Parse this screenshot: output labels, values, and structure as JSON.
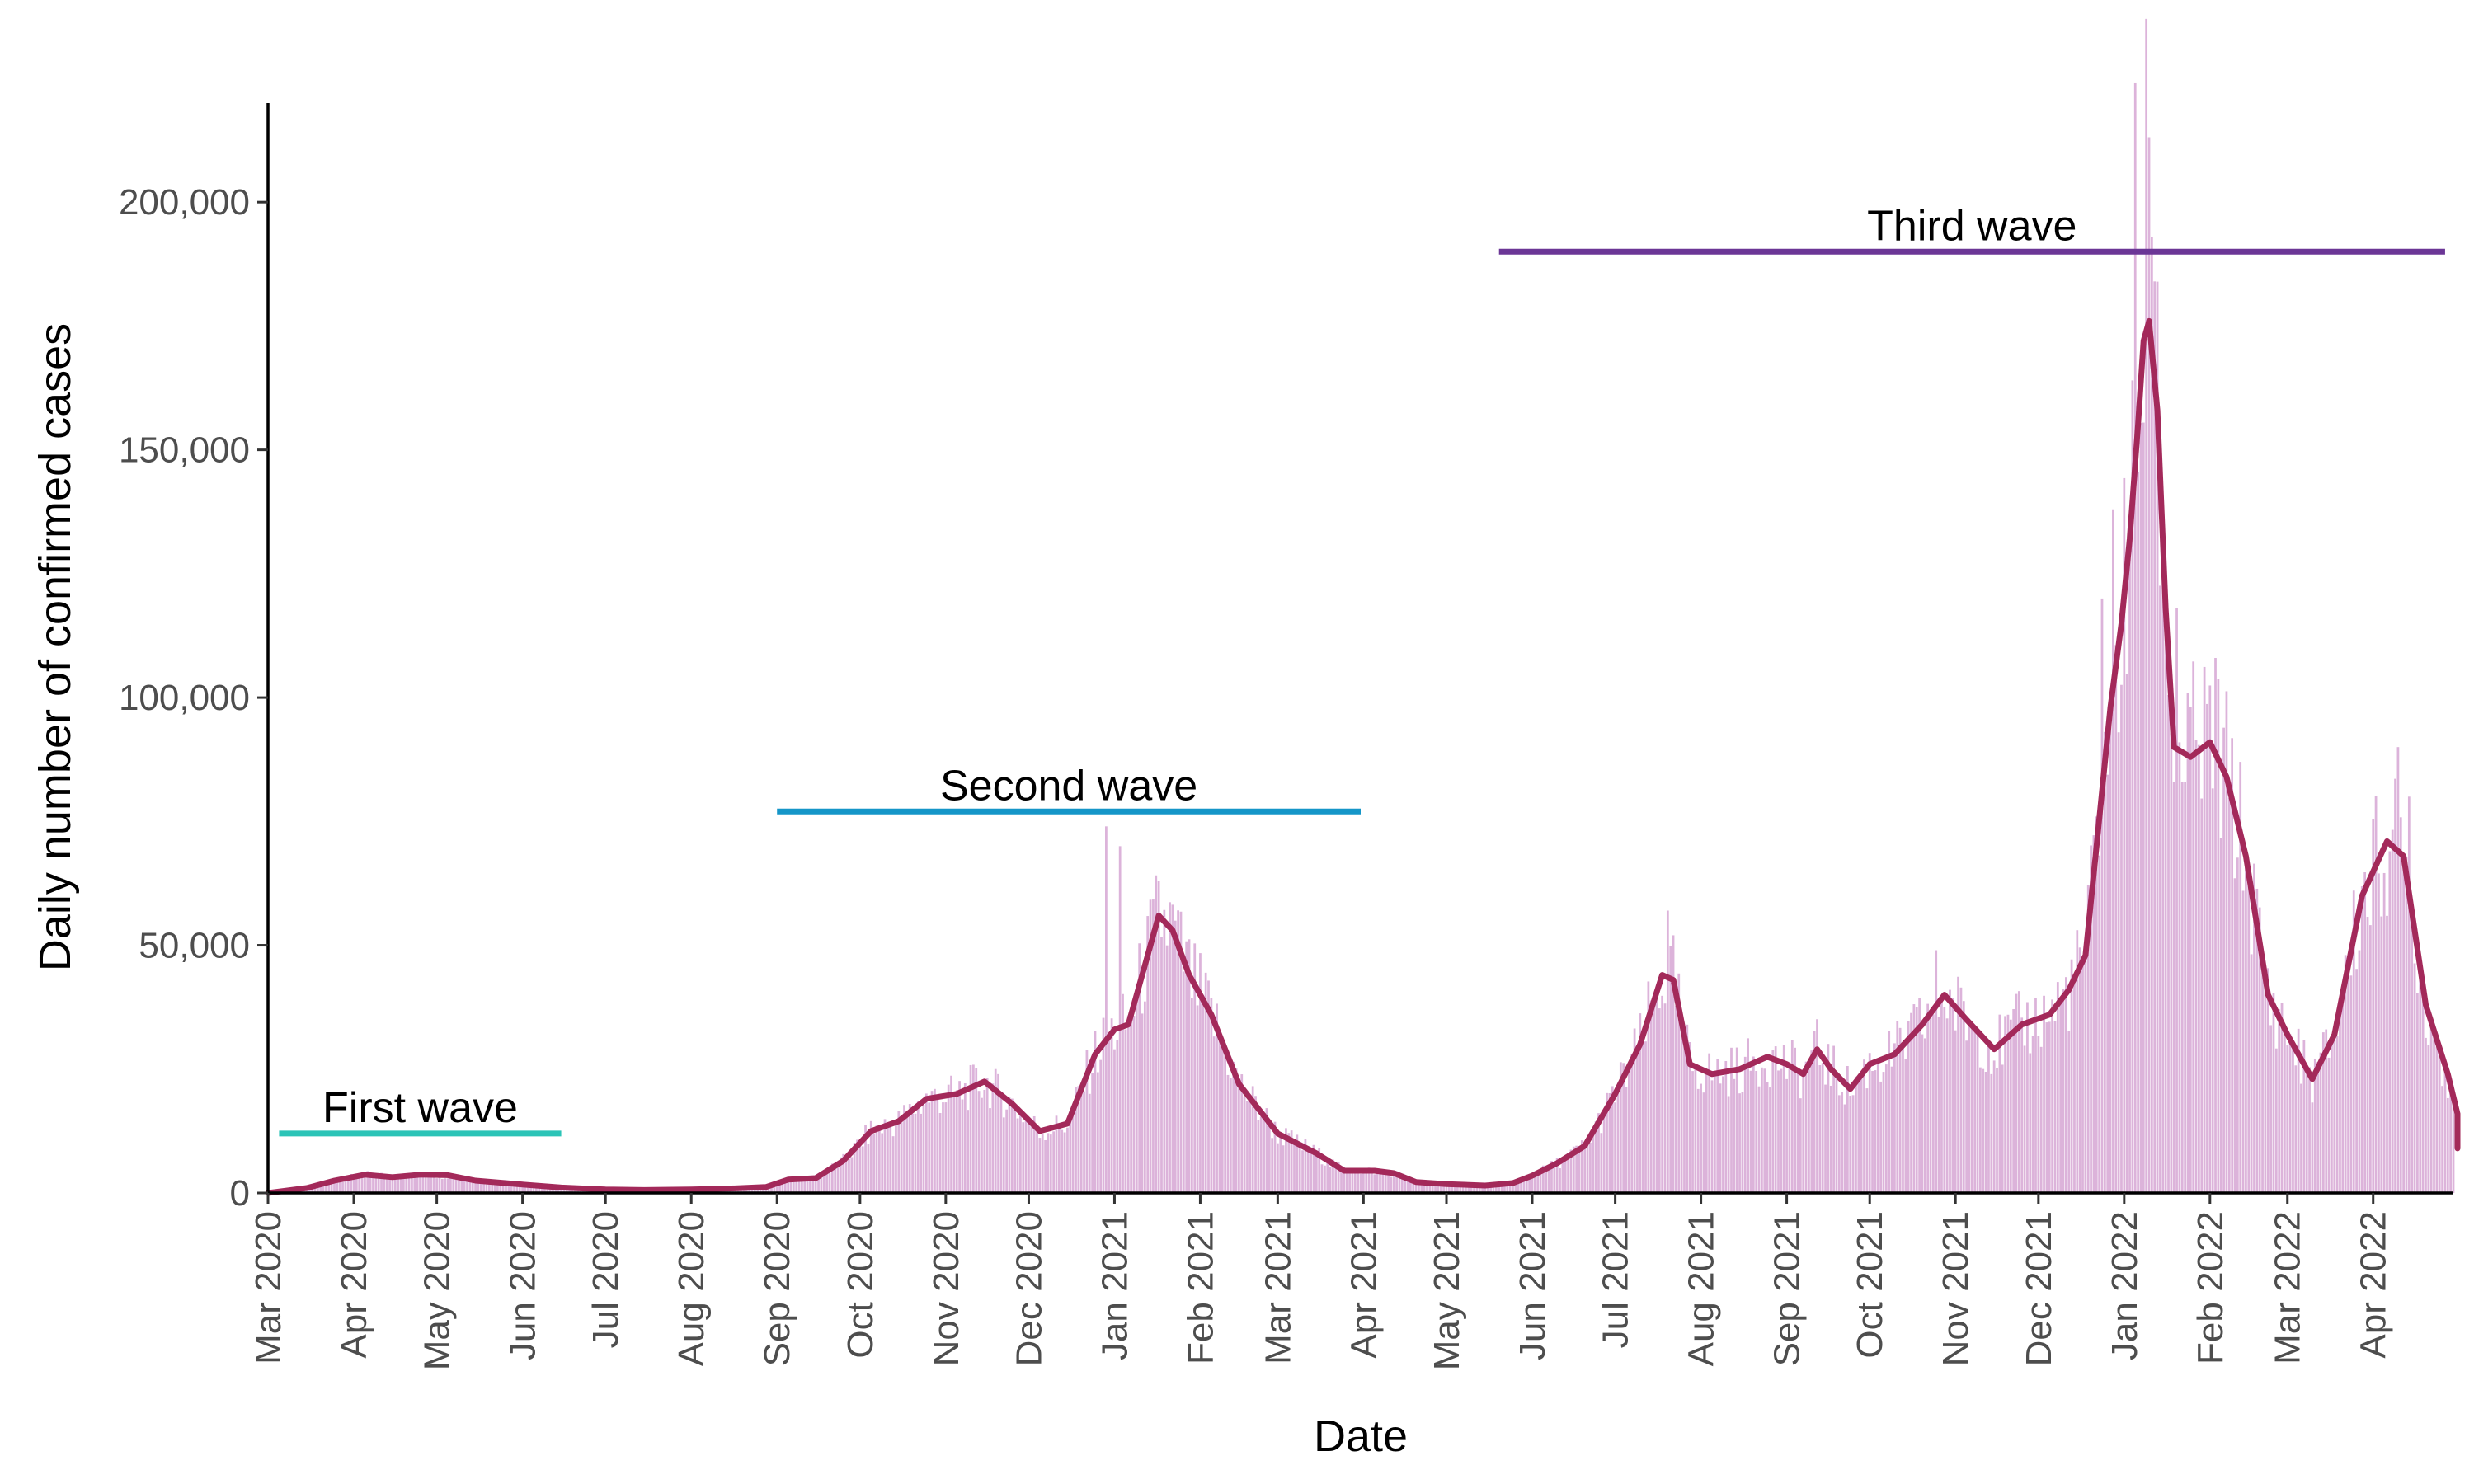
{
  "chart_data": {
    "type": "bar+line",
    "title": "",
    "xlabel": "Date",
    "ylabel": "Daily number of confirmed cases",
    "x_range": [
      "2020-03-01",
      "2022-04-30"
    ],
    "ylim": [
      0,
      220000
    ],
    "y_ticks": [
      0,
      50000,
      100000,
      150000,
      200000
    ],
    "y_tick_labels": [
      "0",
      "50,000",
      "100,000",
      "150,000",
      "200,000"
    ],
    "x_tick_dates": [
      "2020-03-01",
      "2020-04-01",
      "2020-05-01",
      "2020-06-01",
      "2020-07-01",
      "2020-08-01",
      "2020-09-01",
      "2020-10-01",
      "2020-11-01",
      "2020-12-01",
      "2021-01-01",
      "2021-02-01",
      "2021-03-01",
      "2021-04-01",
      "2021-05-01",
      "2021-06-01",
      "2021-07-01",
      "2021-08-01",
      "2021-09-01",
      "2021-10-01",
      "2021-11-01",
      "2021-12-01",
      "2022-01-01",
      "2022-02-01",
      "2022-03-01",
      "2022-04-01"
    ],
    "x_tick_labels": [
      "Mar 2020",
      "Apr 2020",
      "May 2020",
      "Jun 2020",
      "Jul 2020",
      "Aug 2020",
      "Sep 2020",
      "Oct 2020",
      "Nov 2020",
      "Dec 2020",
      "Jan 2021",
      "Feb 2021",
      "Mar 2021",
      "Apr 2021",
      "May 2021",
      "Jun 2021",
      "Jul 2021",
      "Aug 2021",
      "Sep 2021",
      "Oct 2021",
      "Nov 2021",
      "Dec 2021",
      "Jan 2022",
      "Feb 2022",
      "Mar 2022",
      "Apr 2022"
    ],
    "grid": false,
    "legend": "none",
    "colors": {
      "bars": "#dcb3da",
      "trend": "#a3295a",
      "first_wave": "#2bc4b7",
      "second_wave": "#1596c8",
      "third_wave": "#6b3696",
      "axis": "#000000",
      "tick_text": "#4d4d4d"
    },
    "waves": [
      {
        "label": "First wave",
        "start": "2020-03-05",
        "end": "2020-06-15",
        "y": 12000,
        "color_key": "first_wave"
      },
      {
        "label": "Second wave",
        "start": "2020-09-01",
        "end": "2021-03-31",
        "y": 77000,
        "color_key": "second_wave"
      },
      {
        "label": "Third wave",
        "start": "2021-05-20",
        "end": "2022-04-27",
        "y": 190000,
        "color_key": "third_wave"
      }
    ],
    "trend": [
      [
        "2020-03-01",
        0
      ],
      [
        "2020-03-15",
        1000
      ],
      [
        "2020-03-25",
        2500
      ],
      [
        "2020-04-05",
        3700
      ],
      [
        "2020-04-15",
        3200
      ],
      [
        "2020-04-25",
        3700
      ],
      [
        "2020-05-05",
        3600
      ],
      [
        "2020-05-15",
        2500
      ],
      [
        "2020-06-01",
        1700
      ],
      [
        "2020-06-15",
        1100
      ],
      [
        "2020-07-01",
        700
      ],
      [
        "2020-07-15",
        600
      ],
      [
        "2020-08-01",
        700
      ],
      [
        "2020-08-15",
        900
      ],
      [
        "2020-08-28",
        1200
      ],
      [
        "2020-09-05",
        2700
      ],
      [
        "2020-09-15",
        3000
      ],
      [
        "2020-09-25",
        6500
      ],
      [
        "2020-10-05",
        12500
      ],
      [
        "2020-10-15",
        14500
      ],
      [
        "2020-10-25",
        19000
      ],
      [
        "2020-11-05",
        20000
      ],
      [
        "2020-11-15",
        22500
      ],
      [
        "2020-11-25",
        18000
      ],
      [
        "2020-12-05",
        12500
      ],
      [
        "2020-12-15",
        14000
      ],
      [
        "2020-12-25",
        28000
      ],
      [
        "2021-01-01",
        33000
      ],
      [
        "2021-01-06",
        34000
      ],
      [
        "2021-01-12",
        46000
      ],
      [
        "2021-01-17",
        56000
      ],
      [
        "2021-01-22",
        53000
      ],
      [
        "2021-01-28",
        44000
      ],
      [
        "2021-02-05",
        36000
      ],
      [
        "2021-02-15",
        22000
      ],
      [
        "2021-03-01",
        12000
      ],
      [
        "2021-03-15",
        8000
      ],
      [
        "2021-03-25",
        4500
      ],
      [
        "2021-04-05",
        4500
      ],
      [
        "2021-04-12",
        4000
      ],
      [
        "2021-04-20",
        2200
      ],
      [
        "2021-05-01",
        1800
      ],
      [
        "2021-05-15",
        1500
      ],
      [
        "2021-05-25",
        2000
      ],
      [
        "2021-06-01",
        3500
      ],
      [
        "2021-06-10",
        6000
      ],
      [
        "2021-06-20",
        9500
      ],
      [
        "2021-07-01",
        20000
      ],
      [
        "2021-07-10",
        30000
      ],
      [
        "2021-07-18",
        44000
      ],
      [
        "2021-07-22",
        43000
      ],
      [
        "2021-07-28",
        26000
      ],
      [
        "2021-08-05",
        24000
      ],
      [
        "2021-08-15",
        25000
      ],
      [
        "2021-08-25",
        27500
      ],
      [
        "2021-09-01",
        26000
      ],
      [
        "2021-09-07",
        24000
      ],
      [
        "2021-09-12",
        29000
      ],
      [
        "2021-09-17",
        25000
      ],
      [
        "2021-09-24",
        21000
      ],
      [
        "2021-10-01",
        26000
      ],
      [
        "2021-10-10",
        28000
      ],
      [
        "2021-10-20",
        34000
      ],
      [
        "2021-10-28",
        40000
      ],
      [
        "2021-11-05",
        35000
      ],
      [
        "2021-11-15",
        29000
      ],
      [
        "2021-11-25",
        34000
      ],
      [
        "2021-12-05",
        36000
      ],
      [
        "2021-12-12",
        41000
      ],
      [
        "2021-12-18",
        48000
      ],
      [
        "2021-12-22",
        70000
      ],
      [
        "2021-12-27",
        98000
      ],
      [
        "2021-12-31",
        115000
      ],
      [
        "2022-01-03",
        132000
      ],
      [
        "2022-01-06",
        155000
      ],
      [
        "2022-01-08",
        172000
      ],
      [
        "2022-01-10",
        176000
      ],
      [
        "2022-01-13",
        158000
      ],
      [
        "2022-01-16",
        118000
      ],
      [
        "2022-01-19",
        90000
      ],
      [
        "2022-01-25",
        88000
      ],
      [
        "2022-02-01",
        91000
      ],
      [
        "2022-02-07",
        84000
      ],
      [
        "2022-02-14",
        68000
      ],
      [
        "2022-02-22",
        40000
      ],
      [
        "2022-03-01",
        32000
      ],
      [
        "2022-03-10",
        23000
      ],
      [
        "2022-03-18",
        32000
      ],
      [
        "2022-03-28",
        60000
      ],
      [
        "2022-04-06",
        71000
      ],
      [
        "2022-04-12",
        68000
      ],
      [
        "2022-04-20",
        38000
      ],
      [
        "2022-04-28",
        24000
      ],
      [
        "2022-05-05",
        16000
      ],
      [
        "2022-05-10",
        10000
      ],
      [
        "2022-05-15",
        9000
      ]
    ],
    "spikes": [
      [
        "2020-12-29",
        74000
      ],
      [
        "2021-01-03",
        70000
      ],
      [
        "2021-07-20",
        57000
      ],
      [
        "2021-10-25",
        49000
      ],
      [
        "2021-12-24",
        120000
      ],
      [
        "2021-12-28",
        138000
      ],
      [
        "2022-01-05",
        224000
      ],
      [
        "2022-01-09",
        237000
      ],
      [
        "2022-01-11",
        193000
      ],
      [
        "2022-01-12",
        184000
      ],
      [
        "2022-01-20",
        118000
      ],
      [
        "2022-02-03",
        108000
      ],
      [
        "2022-04-10",
        90000
      ],
      [
        "2022-04-14",
        80000
      ]
    ]
  }
}
